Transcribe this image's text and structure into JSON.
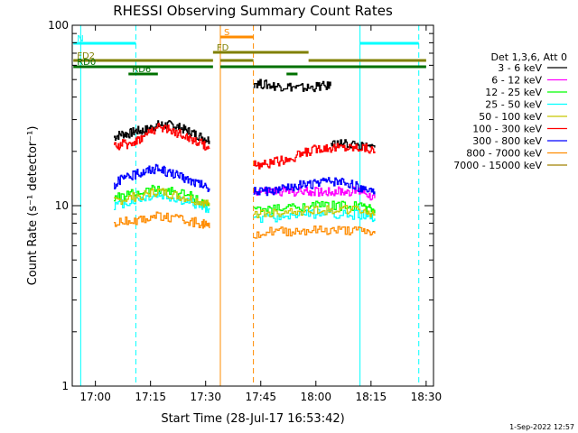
{
  "chart_data": {
    "type": "line",
    "title": "RHESSI Observing Summary Count Rates",
    "xlabel": "Start Time (28-Jul-17 16:53:42)",
    "ylabel": "Count Rate (s⁻¹ detector⁻¹)",
    "y_scale": "log",
    "xlim": [
      "16:53:42",
      "18:32:00"
    ],
    "ylim": [
      1,
      100
    ],
    "x_ticks": [
      "17:00",
      "17:15",
      "17:30",
      "17:45",
      "18:00",
      "18:15",
      "18:30"
    ],
    "y_ticks": [
      "1",
      "10",
      "100"
    ],
    "legend_title": "Det 1,3,6, Att 0",
    "legend_position": "right",
    "grid": false,
    "series": [
      {
        "name": "3 - 6 keV",
        "color": "#000000",
        "segments": [
          {
            "x": [
              "17:05",
              "17:07",
              "17:09",
              "17:11",
              "17:13",
              "17:15",
              "17:17",
              "17:19",
              "17:21",
              "17:23",
              "17:25",
              "17:27",
              "17:29",
              "17:31"
            ],
            "y": [
              24,
              25,
              25,
              26,
              26,
              27,
              28,
              28,
              28,
              27,
              26,
              25,
              24,
              23
            ]
          },
          {
            "x": [
              "17:43",
              "17:46",
              "17:49",
              "17:52",
              "17:55",
              "17:58",
              "18:01",
              "18:04"
            ],
            "y": [
              48,
              47,
              46,
              46,
              45,
              45,
              46,
              46
            ]
          },
          {
            "x": [
              "18:04",
              "18:07",
              "18:10",
              "18:13",
              "18:16"
            ],
            "y": [
              22,
              22,
              22,
              21,
              21
            ]
          }
        ]
      },
      {
        "name": "6 - 12 keV",
        "color": "#ff00ff",
        "segments": [
          {
            "x": [
              "17:43",
              "17:46",
              "17:49",
              "17:52",
              "17:55",
              "17:58",
              "18:01",
              "18:04",
              "18:07",
              "18:10",
              "18:13",
              "18:16"
            ],
            "y": [
              12,
              12,
              12,
              12,
              12,
              12,
              12,
              12,
              12,
              12,
              12,
              11
            ]
          }
        ]
      },
      {
        "name": "12 - 25 keV",
        "color": "#00ff00",
        "segments": [
          {
            "x": [
              "17:05",
              "17:09",
              "17:13",
              "17:17",
              "17:21",
              "17:25",
              "17:29",
              "17:31"
            ],
            "y": [
              11,
              11.5,
              12,
              12.5,
              12,
              11.5,
              10.5,
              10
            ]
          },
          {
            "x": [
              "17:43",
              "17:48",
              "17:53",
              "17:58",
              "18:03",
              "18:08",
              "18:13",
              "18:16"
            ],
            "y": [
              9.5,
              9.5,
              9.8,
              10,
              10,
              10,
              9.8,
              9.5
            ]
          }
        ]
      },
      {
        "name": "25 - 50 keV",
        "color": "#00ffff",
        "segments": [
          {
            "x": [
              "17:05",
              "17:09",
              "17:13",
              "17:17",
              "17:21",
              "17:25",
              "17:29",
              "17:31"
            ],
            "y": [
              10,
              10.5,
              11,
              11.5,
              11,
              10.5,
              10,
              9.5
            ]
          },
          {
            "x": [
              "17:43",
              "17:48",
              "17:53",
              "17:58",
              "18:03",
              "18:08",
              "18:13",
              "18:16"
            ],
            "y": [
              8.5,
              8.5,
              8.8,
              9,
              9,
              9,
              8.8,
              8.5
            ]
          }
        ]
      },
      {
        "name": "50 - 100 keV",
        "color": "#c8c800",
        "segments": [
          {
            "x": [
              "17:05",
              "17:09",
              "17:13",
              "17:17",
              "17:21",
              "17:25",
              "17:29",
              "17:31"
            ],
            "y": [
              10.5,
              11,
              11.5,
              12,
              11.5,
              11,
              10.5,
              10
            ]
          },
          {
            "x": [
              "17:43",
              "17:48",
              "17:53",
              "17:58",
              "18:03",
              "18:08",
              "18:13",
              "18:16"
            ],
            "y": [
              9,
              9,
              9.3,
              9.5,
              9.5,
              9.5,
              9.3,
              9
            ]
          }
        ]
      },
      {
        "name": "100 - 300 keV",
        "color": "#ff0000",
        "segments": [
          {
            "x": [
              "17:05",
              "17:07",
              "17:09",
              "17:11",
              "17:13",
              "17:15",
              "17:17",
              "17:19",
              "17:21",
              "17:23",
              "17:25",
              "17:27",
              "17:29",
              "17:31"
            ],
            "y": [
              21,
              22,
              22,
              23,
              24,
              26,
              27,
              27,
              26,
              25,
              24,
              23,
              22,
              21
            ]
          },
          {
            "x": [
              "17:43",
              "17:46",
              "17:49",
              "17:52",
              "17:55",
              "17:58",
              "18:01",
              "18:04",
              "18:07",
              "18:10",
              "18:13",
              "18:16"
            ],
            "y": [
              17,
              17,
              17.5,
              18,
              19,
              20,
              21,
              21,
              21,
              21,
              21,
              20
            ]
          }
        ]
      },
      {
        "name": "300 - 800 keV",
        "color": "#0000ff",
        "segments": [
          {
            "x": [
              "17:05",
              "17:07",
              "17:09",
              "17:11",
              "17:13",
              "17:15",
              "17:17",
              "17:19",
              "17:21",
              "17:23",
              "17:25",
              "17:27",
              "17:29",
              "17:31"
            ],
            "y": [
              13,
              14,
              14.5,
              15,
              15.5,
              16,
              16,
              15.5,
              15,
              14.5,
              14,
              13.5,
              13,
              12.5
            ]
          },
          {
            "x": [
              "17:43",
              "17:46",
              "17:49",
              "17:52",
              "17:55",
              "17:58",
              "18:01",
              "18:04",
              "18:07",
              "18:10",
              "18:13",
              "18:16"
            ],
            "y": [
              12,
              12,
              12,
              12.5,
              13,
              13,
              13.5,
              13.5,
              13.5,
              13,
              12.5,
              12
            ]
          }
        ]
      },
      {
        "name": "800 - 7000 keV",
        "color": "#ff8c00",
        "segments": [
          {
            "x": [
              "17:05",
              "17:09",
              "17:13",
              "17:17",
              "17:21",
              "17:25",
              "17:29",
              "17:31"
            ],
            "y": [
              8,
              8.2,
              8.5,
              8.8,
              8.5,
              8.2,
              8,
              7.5
            ]
          },
          {
            "x": [
              "17:43",
              "17:48",
              "17:53",
              "17:58",
              "18:03",
              "18:08",
              "18:13",
              "18:16"
            ],
            "y": [
              7,
              7.2,
              7.2,
              7.3,
              7.3,
              7.3,
              7.2,
              7
            ]
          }
        ]
      },
      {
        "name": "7000 - 15000 keV",
        "color": "#a08000",
        "segments": []
      }
    ],
    "annotations": {
      "vertical_lines": [
        {
          "x": "16:56",
          "color": "#00ffff",
          "style": "solid"
        },
        {
          "x": "17:11",
          "color": "#00ffff",
          "style": "dashed"
        },
        {
          "x": "17:34",
          "color": "#ff8c00",
          "style": "solid"
        },
        {
          "x": "17:43",
          "color": "#ff8c00",
          "style": "dashed"
        },
        {
          "x": "18:12",
          "color": "#00ffff",
          "style": "solid"
        },
        {
          "x": "18:28",
          "color": "#00ffff",
          "style": "dashed"
        }
      ],
      "flag_bars": [
        {
          "label": "N",
          "color": "#00ffff",
          "row": 1,
          "intervals": [
            [
              "16:54",
              "17:11"
            ],
            [
              "18:12",
              "18:28"
            ]
          ]
        },
        {
          "label": "S",
          "color": "#ff8c00",
          "row": 0,
          "intervals": [
            [
              "17:34",
              "17:43"
            ]
          ]
        },
        {
          "label": "FD",
          "color": "#808000",
          "row": 2,
          "intervals": [
            [
              "17:32",
              "17:58"
            ]
          ]
        },
        {
          "label": "FD2",
          "color": "#808000",
          "row": 3,
          "intervals": [
            [
              "16:54",
              "17:32"
            ],
            [
              "17:58",
              "18:30"
            ],
            [
              "17:34",
              "17:43"
            ]
          ]
        },
        {
          "label": "RD0",
          "color": "#007000",
          "row": 4,
          "intervals": [
            [
              "16:54",
              "17:32"
            ],
            [
              "17:34",
              "18:30"
            ],
            [
              "17:05",
              "17:12"
            ]
          ]
        },
        {
          "label": "RD6",
          "color": "#007000",
          "row": 5,
          "intervals": [
            [
              "17:09",
              "17:17"
            ],
            [
              "17:52",
              "17:55"
            ]
          ]
        }
      ]
    }
  },
  "footer": {
    "date_stamp": "1-Sep-2022 12:57"
  }
}
